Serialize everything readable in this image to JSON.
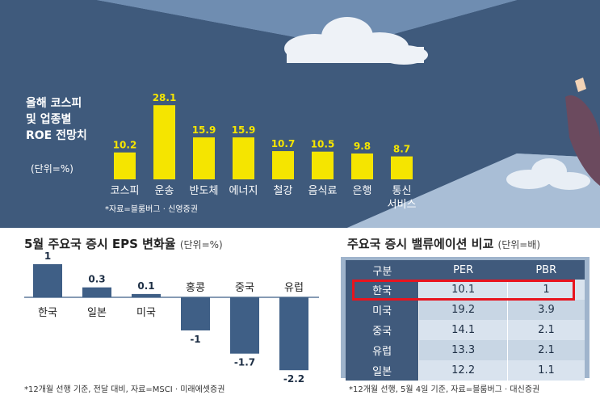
{
  "roe_title_lines": [
    "올해 코스피",
    "및 업종별",
    "ROE 전망치"
  ],
  "roe_unit": "(단위=%)",
  "roe_note": "*자료=블룸버그 · 신영증권",
  "eps_title": "5월 주요국 증시 EPS 변화율",
  "eps_unit": "(단위=%)",
  "eps_note": "*12개월 선행 기준, 전달 대비, 자료=MSCI · 미래에셋증권",
  "val_title": "주요국 증시 밸류에이션 비교",
  "val_unit": "(단위=배)",
  "val_note": "*12개월 선행, 5월 4일 기준, 자료=블룸버그 · 대신증권",
  "chart_data": [
    {
      "type": "bar",
      "categories": [
        "코스피",
        "운송",
        "반도체",
        "에너지",
        "철강",
        "음식료",
        "은행",
        "통신\n서비스"
      ],
      "values": [
        10.2,
        28.1,
        15.9,
        15.9,
        10.7,
        10.5,
        9.8,
        8.7
      ],
      "value_labels": [
        "10.2",
        "28.1",
        "15.9",
        "15.9",
        "10.7",
        "10.5",
        "9.8",
        "8.7"
      ],
      "title": "올해 코스피 및 업종별 ROE 전망치",
      "ylabel": "(단위=%)",
      "ylim": [
        0,
        30
      ],
      "color": "#f5e500"
    },
    {
      "type": "bar",
      "categories": [
        "한국",
        "일본",
        "미국",
        "홍콩",
        "중국",
        "유럽"
      ],
      "values": [
        1,
        0.3,
        0.1,
        -1,
        -1.7,
        -2.2
      ],
      "value_labels": [
        "1",
        "0.3",
        "0.1",
        "-1",
        "-1.7",
        "-2.2"
      ],
      "title": "5월 주요국 증시 EPS 변화율",
      "ylabel": "(단위=%)",
      "ylim": [
        -2.2,
        1
      ],
      "color": "#3f5f86"
    },
    {
      "type": "table",
      "title": "주요국 증시 밸류에이션 비교",
      "columns": [
        "구분",
        "PER",
        "PBR"
      ],
      "rows": [
        [
          "한국",
          "10.1",
          "1"
        ],
        [
          "미국",
          "19.2",
          "3.9"
        ],
        [
          "중국",
          "14.1",
          "2.1"
        ],
        [
          "유럽",
          "13.3",
          "2.1"
        ],
        [
          "일본",
          "12.2",
          "1.1"
        ]
      ],
      "highlight_row": "한국",
      "highlight_color": "#e8141e"
    }
  ]
}
